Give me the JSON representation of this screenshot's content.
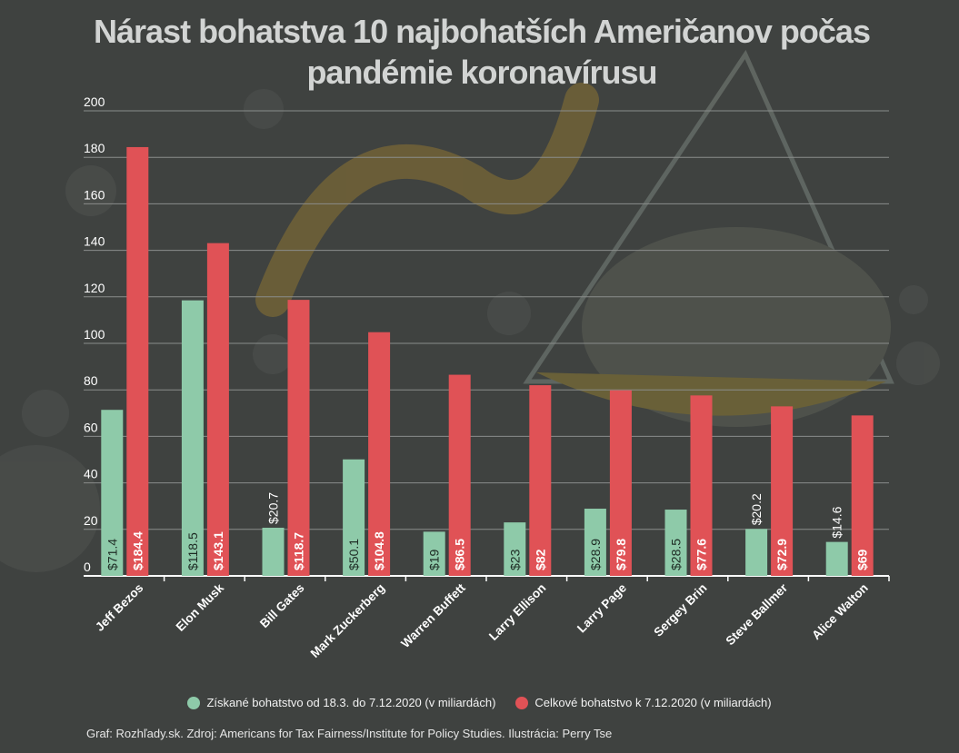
{
  "title": "Nárast bohatstva 10 najbohatších Američanov počas pandémie koronavírusu",
  "source": "Graf: Rozhľady.sk. Zdroj: Americans for Tax Fairness/Institute for Policy Studies. Ilustrácia: Perry Tse",
  "colors": {
    "background": "#3f4240",
    "gained": "#8ecaa9",
    "total": "#e05256",
    "grid": "#8a8d8b",
    "text": "#ffffff"
  },
  "chart_data": {
    "type": "bar",
    "categories": [
      "Jeff Bezos",
      "Elon Musk",
      "Bill Gates",
      "Mark Zuckerberg",
      "Warren Buffett",
      "Larry Ellison",
      "Larry Page",
      "Sergey Brin",
      "Steve Ballmer",
      "Alice Walton"
    ],
    "series": [
      {
        "name": "Získané bohatstvo od 18.3. do 7.12.2020 (v miliardách)",
        "values": [
          71.4,
          118.5,
          20.7,
          50.1,
          19,
          23,
          28.9,
          28.5,
          20.2,
          14.6
        ],
        "labels": [
          "$71.4",
          "$118.5",
          "$20.7",
          "$50.1",
          "$19",
          "$23",
          "$28.9",
          "$28.5",
          "$20.2",
          "$14.6"
        ]
      },
      {
        "name": "Celkové bohatstvo k 7.12.2020 (v miliardách)",
        "values": [
          184.4,
          143.1,
          118.7,
          104.8,
          86.5,
          82,
          79.8,
          77.6,
          72.9,
          69
        ],
        "labels": [
          "$184.4",
          "$143.1",
          "$118.7",
          "$104.8",
          "$86.5",
          "$82",
          "$79.8",
          "$77.6",
          "$72.9",
          "$69"
        ]
      }
    ],
    "yticks": [
      "0",
      "20",
      "40",
      "60",
      "80",
      "100",
      "120",
      "140",
      "160",
      "180",
      "200"
    ],
    "ylim": [
      0,
      200
    ],
    "grid": true,
    "legend": "bottom"
  }
}
